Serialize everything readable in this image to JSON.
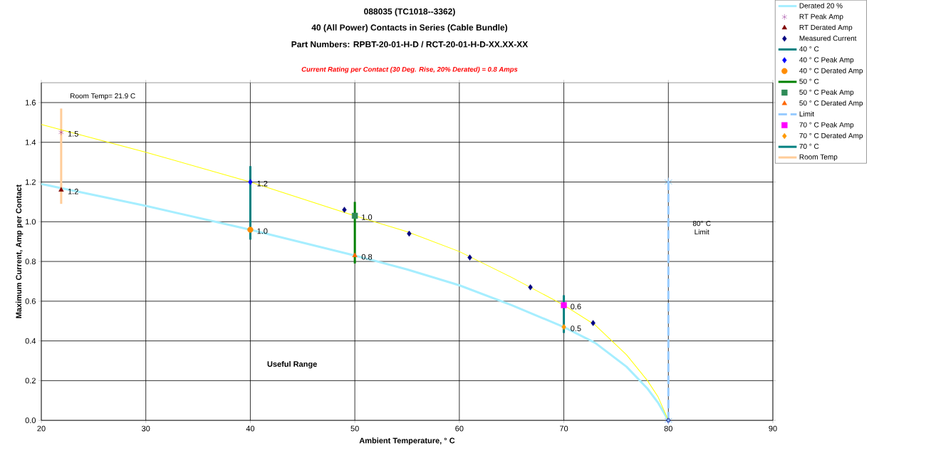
{
  "chart_data": {
    "type": "line",
    "title": [
      "088035 (TC1018--3362)",
      "40 (All Power) Contacts in Series (Cable Bundle)",
      "Part Numbers: RPBT-20-01-H-D / RCT-20-01-H-D-XX.XX-XX"
    ],
    "subtitle": "Current Rating per Contact (30 Deg. Rise, 20% Derated)  = 0.8 Amps",
    "xlabel": "Ambient Temperature,  ° C",
    "ylabel": "Maximum Current, Amp per Contact",
    "xlim": [
      20,
      90
    ],
    "xticks": [
      20,
      30,
      40,
      50,
      60,
      70,
      80,
      90
    ],
    "ylim": [
      0,
      1.7
    ],
    "yticks": [
      {
        "value": 0,
        "label": "0.0"
      },
      {
        "value": 0.2,
        "label": "0.2"
      },
      {
        "value": 0.4,
        "label": "0.4"
      },
      {
        "value": 0.6,
        "label": "0.6"
      },
      {
        "value": 0.8,
        "label": "0.8"
      },
      {
        "value": 1.0,
        "label": "1.0"
      },
      {
        "value": 1.2,
        "label": "1.2"
      },
      {
        "value": 1.4,
        "label": "1.4"
      },
      {
        "value": 1.6,
        "label": "1.6"
      }
    ],
    "grid": true,
    "legend": "right",
    "annotations": [
      "Room Temp= 21.9 C",
      "80° C Limit",
      "Useful Range"
    ],
    "series": [
      {
        "name": "Derated 20 %",
        "color": "#a6eeff",
        "marker": "none",
        "x": [
          20,
          30,
          40,
          50,
          55,
          60,
          65,
          70,
          73,
          76,
          78,
          79,
          80
        ],
        "values": [
          1.19,
          1.08,
          0.96,
          0.83,
          0.76,
          0.68,
          0.58,
          0.47,
          0.39,
          0.27,
          0.16,
          0.09,
          0
        ]
      },
      {
        "name": "RT Peak Amp",
        "type": "scatter",
        "color": "#800080",
        "marker": "cross",
        "x": [
          21.9
        ],
        "values": [
          1.45
        ],
        "value_labels": [
          "1.5"
        ]
      },
      {
        "name": "RT Derated Amp",
        "type": "scatter",
        "color": "#800000",
        "marker": "triangle",
        "x": [
          21.9
        ],
        "values": [
          1.16
        ],
        "value_labels": [
          "1.2"
        ]
      },
      {
        "name": "Measured Current",
        "type": "scatter",
        "color": "#000080",
        "marker": "diamond",
        "x": [
          49,
          55.2,
          61,
          66.8,
          72.8,
          80
        ],
        "values": [
          1.06,
          0.94,
          0.82,
          0.67,
          0.49,
          0
        ]
      },
      {
        "name": "40 ° C",
        "type": "line",
        "color": "#008080",
        "marker": "none",
        "x": [
          40,
          40
        ],
        "values": [
          0.91,
          1.28
        ]
      },
      {
        "name": "40  ° C Peak Amp",
        "type": "scatter",
        "color": "#0000ff",
        "marker": "diamond",
        "x": [
          40
        ],
        "values": [
          1.2
        ],
        "value_labels": [
          "1.2"
        ]
      },
      {
        "name": "40  ° C Derated Amp",
        "type": "scatter",
        "color": "#ff8c00",
        "marker": "circle",
        "x": [
          40
        ],
        "values": [
          0.96
        ],
        "value_labels": [
          "1.0"
        ]
      },
      {
        "name": "50  ° C",
        "type": "line",
        "color": "#008000",
        "marker": "none",
        "x": [
          50,
          50
        ],
        "values": [
          0.79,
          1.1
        ]
      },
      {
        "name": "50  ° C Peak Amp",
        "type": "scatter",
        "color": "#2e8b57",
        "marker": "square",
        "x": [
          50
        ],
        "values": [
          1.03
        ],
        "value_labels": [
          "1.0"
        ]
      },
      {
        "name": "50  ° C Derated Amp",
        "type": "scatter",
        "color": "#ff6600",
        "marker": "triangle",
        "x": [
          50
        ],
        "values": [
          0.83
        ],
        "value_labels": [
          "0.8"
        ]
      },
      {
        "name": "Limit",
        "type": "line",
        "color": "#99ccff",
        "marker": "cross",
        "line_style": "dashed",
        "x": [
          80,
          80
        ],
        "values": [
          0,
          1.2
        ]
      },
      {
        "name": "70  ° C Peak Amp",
        "type": "scatter",
        "color": "#ff00ff",
        "marker": "square",
        "x": [
          70
        ],
        "values": [
          0.58
        ],
        "value_labels": [
          "0.6"
        ]
      },
      {
        "name": "70  ° C Derated Amp",
        "type": "scatter",
        "color": "#ff9900",
        "marker": "diamond",
        "x": [
          70
        ],
        "values": [
          0.47
        ],
        "value_labels": [
          "0.5"
        ]
      },
      {
        "name": "70  ° C",
        "type": "line",
        "color": "#008080",
        "marker": "none",
        "x": [
          70,
          70
        ],
        "values": [
          0.44,
          0.63
        ]
      },
      {
        "name": "Room Temp",
        "type": "line",
        "color": "#ffcc99",
        "marker": "none",
        "x": [
          21.9,
          21.9
        ],
        "values": [
          1.09,
          1.57
        ]
      },
      {
        "color": "#ffff00",
        "marker": "none",
        "x": [
          20,
          30,
          40,
          50,
          55,
          60,
          65,
          70,
          73,
          76,
          78,
          79,
          80
        ],
        "values": [
          1.49,
          1.35,
          1.2,
          1.03,
          0.95,
          0.85,
          0.72,
          0.58,
          0.48,
          0.33,
          0.2,
          0.12,
          0
        ]
      }
    ]
  }
}
